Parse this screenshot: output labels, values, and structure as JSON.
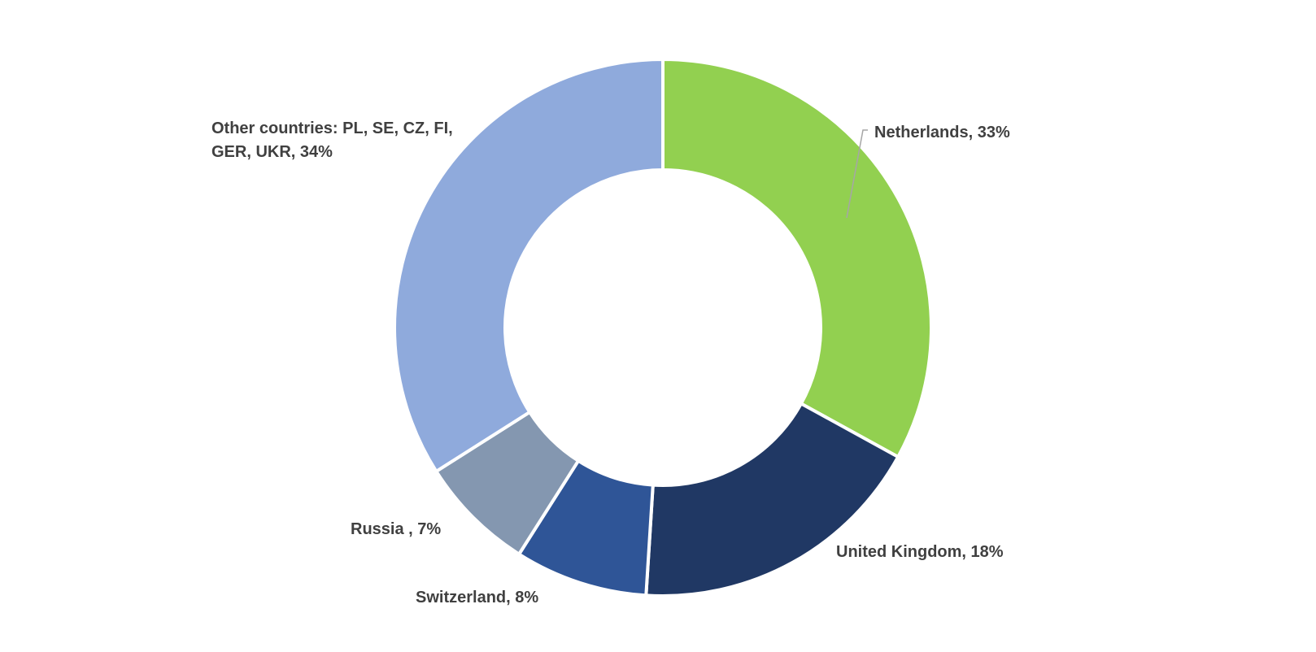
{
  "chart_data": {
    "type": "pie",
    "variant": "donut",
    "title": "",
    "legend": "none",
    "series": [
      {
        "values": [
          33,
          18,
          8,
          7,
          34
        ]
      }
    ],
    "categories": [
      "Netherlands",
      "United Kingdom",
      "Switzerland",
      "Russia",
      "Other countries: PL, SE, CZ, FI, GER, UKR"
    ],
    "slices": [
      {
        "label": "Netherlands",
        "value": 33,
        "color": "#92d050"
      },
      {
        "label": "United Kingdom",
        "value": 18,
        "color": "#203864"
      },
      {
        "label": "Switzerland",
        "value": 8,
        "color": "#2f5597"
      },
      {
        "label": "Russia",
        "value": 7,
        "color": "#8497b0"
      },
      {
        "label": "Other countries: PL, SE, CZ, FI, GER, UKR",
        "value": 34,
        "color": "#8faadc"
      }
    ],
    "data_labels": [
      {
        "lines": [
          "Netherlands, 33%"
        ]
      },
      {
        "lines": [
          "United Kingdom, 18%"
        ]
      },
      {
        "lines": [
          "Switzerland, 8%"
        ]
      },
      {
        "lines": [
          "Russia , 7%"
        ]
      },
      {
        "lines": [
          "Other countries: PL, SE, CZ, FI,",
          "GER, UKR, 34%"
        ]
      }
    ]
  }
}
